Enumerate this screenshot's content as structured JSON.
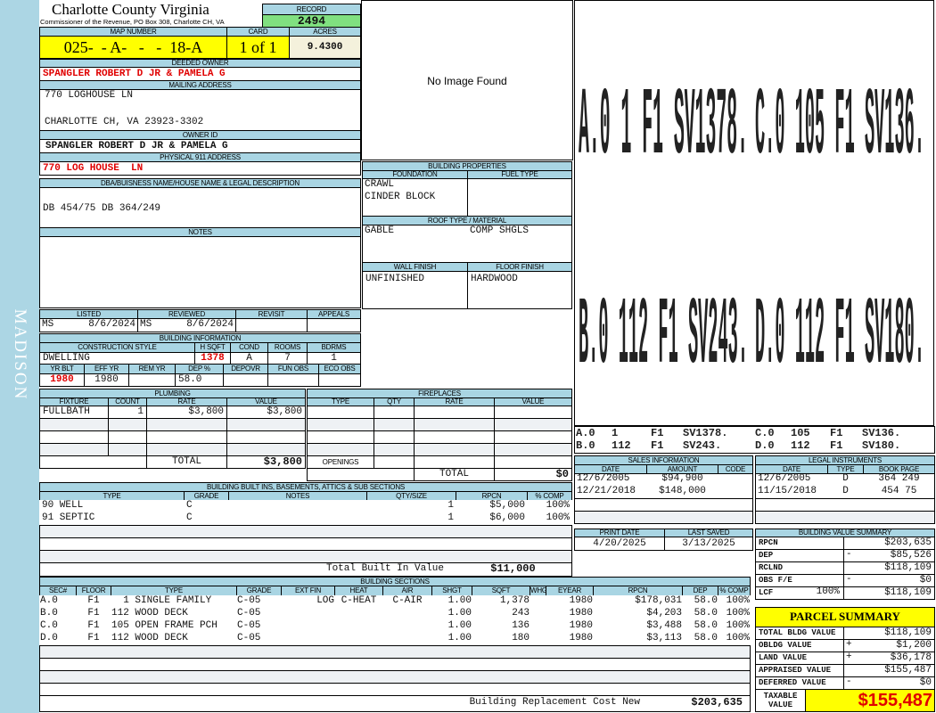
{
  "header": {
    "title": "Charlotte County Virginia",
    "subtitle": "Commissioner of the Revenue, PO Box 308, Charlotte CH, VA",
    "record_label": "RECORD",
    "record_value": "2494"
  },
  "district": "MADISON",
  "parcel": {
    "map_label": "MAP NUMBER",
    "map_number": "025-  - A-   -   -  18-A",
    "card_label": "CARD",
    "card": "1 of 1",
    "acres_label": "ACRES",
    "acres": "9.4300"
  },
  "owner": {
    "deeded_label": "DEEDED OWNER",
    "deeded_owner": "SPANGLER ROBERT D JR & PAMELA G",
    "mailing_label": "MAILING ADDRESS",
    "mailing_line1": "770 LOGHOUSE LN",
    "mailing_line2": "CHARLOTTE CH, VA 23923-3302",
    "owner_id_label": "OWNER ID",
    "owner_id": "SPANGLER ROBERT D JR & PAMELA G",
    "physical_label": "PHYSICAL 911 ADDRESS",
    "physical_address": "770 LOG HOUSE  LN"
  },
  "dba": {
    "label": "DBA/BUISNESS NAME/HOUSE NAME & LEGAL DESCRIPTION",
    "text": "DB 454/75 DB 364/249"
  },
  "notes": {
    "label": "NOTES"
  },
  "image": {
    "placeholder": "No Image Found"
  },
  "review": {
    "listed_label": "LISTED",
    "reviewed_label": "REVIEWED",
    "revisit_label": "REVISIT",
    "appeals_label": "APPEALS",
    "listed_by": "MS",
    "listed_date": "8/6/2024",
    "reviewed_by": "MS",
    "reviewed_date": "8/6/2024"
  },
  "building_info": {
    "title": "BUILDING INFORMATION",
    "labels": {
      "style": "CONSTRUCTION STYLE",
      "hsqft": "H SQFT",
      "cond": "COND",
      "rooms": "ROOMS",
      "bdrms": "BDRMS",
      "yr_blt": "YR BLT",
      "eff_yr": "EFF YR",
      "rem_yr": "REM YR",
      "dep": "DEP %",
      "depovr": "DEPOVR",
      "fun_obs": "FUN OBS",
      "eco_obs": "ECO OBS"
    },
    "style": "DWELLING",
    "hsqft": "1378",
    "cond": "A",
    "rooms": "7",
    "bdrms": "1",
    "yr_blt": "1980",
    "eff_yr": "1980",
    "dep": "58.0"
  },
  "building_properties": {
    "title": "BUILDING PROPERTIES",
    "foundation_label": "FOUNDATION",
    "foundation_1": "CRAWL",
    "foundation_2": "CINDER BLOCK",
    "fuel_label": "FUEL TYPE",
    "roof_label": "ROOF TYPE / MATERIAL",
    "roof_type": "GABLE",
    "roof_material": "COMP SHGLS",
    "wall_label": "WALL FINISH",
    "wall": "UNFINISHED",
    "floor_label": "FLOOR FINISH",
    "floor": "HARDWOOD"
  },
  "plumbing": {
    "title": "PLUMBING",
    "columns": [
      "FIXTURE",
      "COUNT",
      "RATE",
      "VALUE"
    ],
    "rows": [
      [
        "FULLBATH",
        "1",
        "$3,800",
        "$3,800"
      ]
    ],
    "total_label": "TOTAL",
    "total": "$3,800"
  },
  "fireplaces": {
    "title": "FIREPLACES",
    "columns": [
      "TYPE",
      "QTY",
      "RATE",
      "VALUE"
    ],
    "openings_label": "OPENINGS",
    "total_label": "TOTAL",
    "total": "$0"
  },
  "built_ins": {
    "title": "BUILDING BUILT INS, BASEMENTS, ATTICS & SUB SECTIONS",
    "columns": [
      "TYPE",
      "GRADE",
      "NOTES",
      "QTY/SIZE",
      "RPCN",
      "% COMP"
    ],
    "rows": [
      [
        "90 WELL",
        "C",
        "",
        "1",
        "$5,000",
        "100%"
      ],
      [
        "91 SEPTIC",
        "C",
        "",
        "1",
        "$6,000",
        "100%"
      ]
    ],
    "total_label": "Total Built In Value",
    "total": "$11,000"
  },
  "sections": {
    "title": "BUILDING SECTIONS",
    "columns": [
      "SEC#",
      "FLOOR",
      "TYPE",
      "GRADE",
      "EXT FIN",
      "HEAT",
      "AIR",
      "SHGT",
      "SQFT",
      "WHGT",
      "EYEAR",
      "RPCN",
      "DEP",
      "% COMP"
    ],
    "rows": [
      [
        "A.0",
        "F1",
        "  1 SINGLE FAMILY",
        "C-05",
        "LOG",
        "C-HEAT",
        "C-AIR",
        "1.00",
        "1,378",
        "",
        "1980",
        "$178,031",
        "58.0",
        "100%"
      ],
      [
        "B.0",
        "F1",
        "112 WOOD DECK",
        "C-05",
        "",
        "",
        "",
        "1.00",
        "243",
        "",
        "1980",
        "$4,203",
        "58.0",
        "100%"
      ],
      [
        "C.0",
        "F1",
        "105 OPEN FRAME PCH",
        "C-05",
        "",
        "",
        "",
        "1.00",
        "136",
        "",
        "1980",
        "$3,488",
        "58.0",
        "100%"
      ],
      [
        "D.0",
        "F1",
        "112 WOOD DECK",
        "C-05",
        "",
        "",
        "",
        "1.00",
        "180",
        "",
        "1980",
        "$3,113",
        "58.0",
        "100%"
      ]
    ],
    "total_label": "Building Replacement Cost New",
    "total": "$203,635"
  },
  "sketch": {
    "labels": [
      [
        "A.0",
        "1",
        "F1",
        "SV1378."
      ],
      [
        "C.0",
        "105",
        "F1",
        "SV136."
      ],
      [
        "B.0",
        "112",
        "F1",
        "SV243."
      ],
      [
        "D.0",
        "112",
        "F1",
        "SV180."
      ]
    ]
  },
  "sales": {
    "title": "SALES INFORMATION",
    "columns": [
      "DATE",
      "AMOUNT",
      "CODE"
    ],
    "rows": [
      [
        "12/6/2005",
        "$94,900",
        ""
      ],
      [
        "12/21/2018",
        "$148,000",
        ""
      ]
    ]
  },
  "legal": {
    "title": "LEGAL INSTRUMENTS",
    "columns": [
      "DATE",
      "TYPE",
      "BOOK PAGE"
    ],
    "rows": [
      [
        "12/6/2005",
        "D",
        "364 249"
      ],
      [
        "11/15/2018",
        "D",
        "454 75"
      ]
    ]
  },
  "dates": {
    "print_label": "PRINT DATE",
    "print_date": "4/20/2025",
    "saved_label": "LAST SAVED",
    "last_saved": "3/13/2025"
  },
  "value_summary": {
    "title": "BUILDING VALUE SUMMARY",
    "rows": [
      {
        "label": "RPCN",
        "extra": "",
        "sign": "",
        "value": "$203,635"
      },
      {
        "label": "DEP",
        "extra": "",
        "sign": "-",
        "value": "$85,526"
      },
      {
        "label": "RCLND",
        "extra": "",
        "sign": "",
        "value": "$118,109"
      },
      {
        "label": "OBS F/E",
        "extra": "",
        "sign": "-",
        "value": "$0"
      },
      {
        "label": "LCF",
        "extra": "100%",
        "sign": "",
        "value": "$118,109"
      }
    ]
  },
  "parcel_summary": {
    "title": "PARCEL SUMMARY",
    "rows": [
      {
        "label": "TOTAL BLDG VALUE",
        "sign": "",
        "value": "$118,109"
      },
      {
        "label": "OBLDG VALUE",
        "sign": "+",
        "value": "$1,200"
      },
      {
        "label": "LAND VALUE",
        "sign": "+",
        "value": "$36,178"
      },
      {
        "label": "APPRAISED VALUE",
        "sign": "",
        "value": "$155,487"
      },
      {
        "label": "DEFERRED VALUE",
        "sign": "-",
        "value": "$0"
      }
    ],
    "taxable_label": "TAXABLE\nVALUE",
    "taxable_value": "$155,487"
  },
  "colors": {
    "header_blue": "#a9d5e3",
    "highlight_yellow": "#ffff00",
    "record_green": "#80e080",
    "alert_red": "#e00000"
  }
}
